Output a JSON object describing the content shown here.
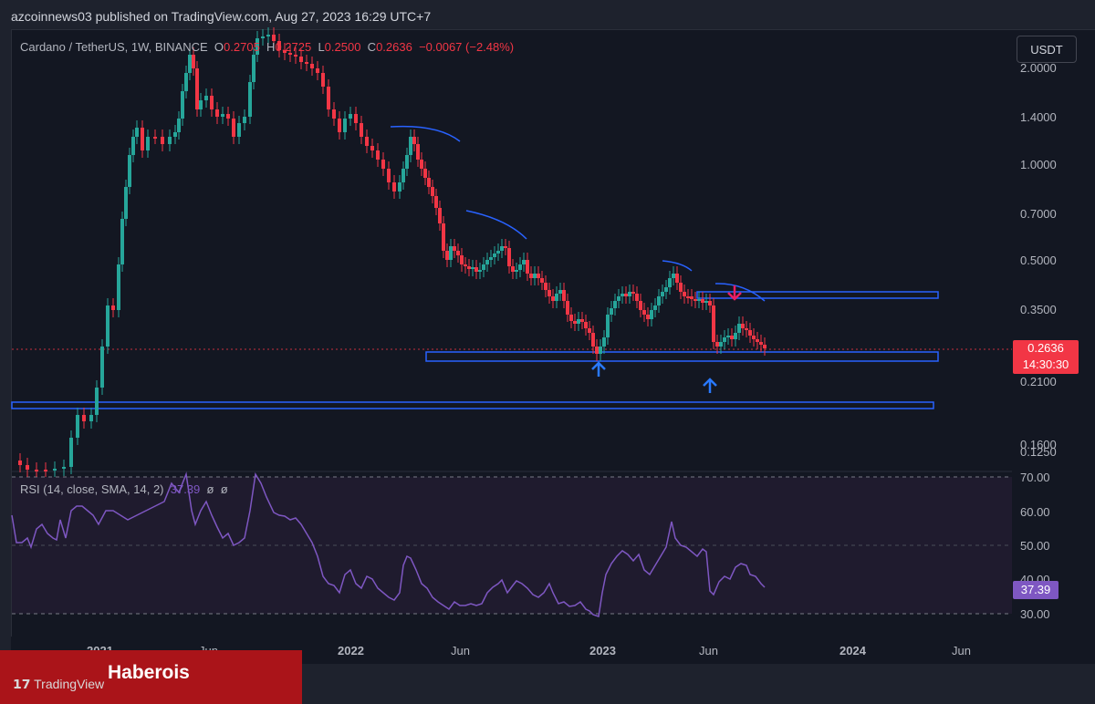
{
  "header": {
    "publisher": "azcoinnews03 published on TradingView.com, Aug 27, 2023 16:29 UTC+7"
  },
  "legend": {
    "symbol": "Cardano / TetherUS, 1W, BINANCE",
    "open_label": "O",
    "open": "0.2705",
    "high_label": "H",
    "high": "0.2725",
    "low_label": "L",
    "low": "0.2500",
    "close_label": "C",
    "close": "0.2636",
    "change": "−0.0067 (−2.48%)"
  },
  "currency_button": "USDT",
  "price_axis": [
    "2.0000",
    "1.4000",
    "1.0000",
    "0.7000",
    "0.5000",
    "0.3500",
    "0.2100",
    "0.1600",
    "0.1250"
  ],
  "current_price": {
    "value": "0.2636",
    "countdown": "14:30:30",
    "color": "#f23645"
  },
  "rsi": {
    "legend": "RSI (14, close, SMA, 14, 2)",
    "value": "37.39",
    "placeholder1": "ø",
    "placeholder2": "ø",
    "axis": [
      "70.00",
      "60.00",
      "50.00",
      "40.00",
      "30.00"
    ],
    "color": "#7e57c2"
  },
  "time_axis": [
    "2021",
    "Jun",
    "2022",
    "Jun",
    "2023",
    "Jun",
    "2024",
    "Jun"
  ],
  "branding": {
    "name": "Haberois",
    "logo_text": "TradingView",
    "color": "#aa1419"
  },
  "colors": {
    "up": "#26a69a",
    "down": "#f23645",
    "zone": "#2962ff",
    "arc": "#2962ff"
  }
}
